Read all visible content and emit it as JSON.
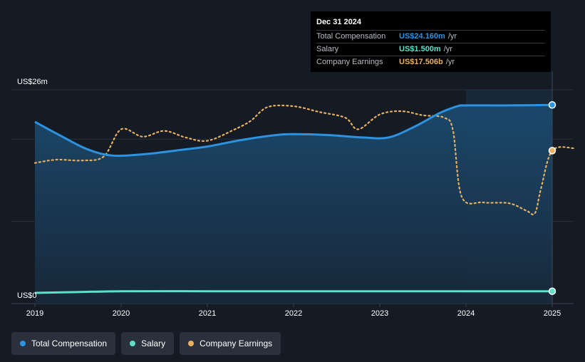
{
  "colors": {
    "total_compensation": "#2d92e0",
    "salary": "#5ee0c8",
    "company_earnings": "#e8b060",
    "background": "#151b24"
  },
  "tooltip": {
    "date": "Dec 31 2024",
    "rows": [
      {
        "label": "Total Compensation",
        "value": "US$24.160m",
        "unit": "/yr",
        "color": "#2d92e0"
      },
      {
        "label": "Salary",
        "value": "US$1.500m",
        "unit": "/yr",
        "color": "#5ee0c8"
      },
      {
        "label": "Company Earnings",
        "value": "US$17.506b",
        "unit": "/yr",
        "color": "#e8b060"
      }
    ]
  },
  "legend": [
    {
      "label": "Total Compensation",
      "color": "#2d92e0"
    },
    {
      "label": "Salary",
      "color": "#5ee0c8"
    },
    {
      "label": "Company Earnings",
      "color": "#e8b060"
    }
  ],
  "chart_data": {
    "type": "line",
    "title": "",
    "xlabel": "",
    "ylabel": "",
    "y_top_label": "US$26m",
    "y_bottom_label": "US$0",
    "ylim": [
      0,
      26
    ],
    "xlim": [
      2019,
      2025.25
    ],
    "x_ticks": [
      "2019",
      "2020",
      "2021",
      "2022",
      "2023",
      "2024",
      "2025"
    ],
    "highlight_from": 2024,
    "highlight_to": 2025,
    "series": [
      {
        "name": "Total Compensation",
        "unit": "US$m",
        "points": [
          [
            2019,
            22.1
          ],
          [
            2019.3,
            20.4
          ],
          [
            2019.6,
            18.8
          ],
          [
            2019.9,
            18.0
          ],
          [
            2020.3,
            18.2
          ],
          [
            2020.7,
            18.7
          ],
          [
            2021.0,
            19.1
          ],
          [
            2021.4,
            19.9
          ],
          [
            2021.8,
            20.5
          ],
          [
            2022.0,
            20.6
          ],
          [
            2022.4,
            20.5
          ],
          [
            2022.8,
            20.2
          ],
          [
            2023.1,
            20.2
          ],
          [
            2023.4,
            21.5
          ],
          [
            2023.7,
            23.2
          ],
          [
            2023.9,
            24.0
          ],
          [
            2024.0,
            24.1
          ],
          [
            2024.5,
            24.1
          ],
          [
            2025.0,
            24.16
          ]
        ]
      },
      {
        "name": "Salary",
        "unit": "US$m",
        "points": [
          [
            2019,
            1.3
          ],
          [
            2019.5,
            1.4
          ],
          [
            2020.0,
            1.5
          ],
          [
            2021.0,
            1.5
          ],
          [
            2022.0,
            1.5
          ],
          [
            2023.0,
            1.5
          ],
          [
            2024.0,
            1.5
          ],
          [
            2025.0,
            1.5
          ]
        ]
      },
      {
        "name": "Company Earnings",
        "unit": "normalized",
        "points": [
          [
            2019,
            17.1
          ],
          [
            2019.25,
            17.5
          ],
          [
            2019.55,
            17.4
          ],
          [
            2019.8,
            17.9
          ],
          [
            2020.0,
            21.2
          ],
          [
            2020.25,
            20.3
          ],
          [
            2020.5,
            21.0
          ],
          [
            2020.75,
            20.2
          ],
          [
            2021.0,
            19.8
          ],
          [
            2021.3,
            21.1
          ],
          [
            2021.5,
            22.2
          ],
          [
            2021.7,
            23.9
          ],
          [
            2022.0,
            24.0
          ],
          [
            2022.3,
            23.3
          ],
          [
            2022.6,
            22.6
          ],
          [
            2022.75,
            21.2
          ],
          [
            2023.0,
            23.0
          ],
          [
            2023.25,
            23.4
          ],
          [
            2023.5,
            22.9
          ],
          [
            2023.75,
            22.6
          ],
          [
            2023.85,
            21.0
          ],
          [
            2023.95,
            13.0
          ],
          [
            2024.2,
            12.3
          ],
          [
            2024.5,
            12.2
          ],
          [
            2024.7,
            11.3
          ],
          [
            2024.8,
            11.0
          ],
          [
            2024.87,
            14.0
          ],
          [
            2025.0,
            18.6
          ],
          [
            2025.25,
            18.9
          ]
        ]
      }
    ],
    "end_markers": [
      {
        "series": "Total Compensation",
        "x": 2025.0,
        "y": 24.16
      },
      {
        "series": "Salary",
        "x": 2025.0,
        "y": 1.5
      },
      {
        "series": "Company Earnings",
        "x": 2025.0,
        "y": 18.6
      }
    ]
  }
}
